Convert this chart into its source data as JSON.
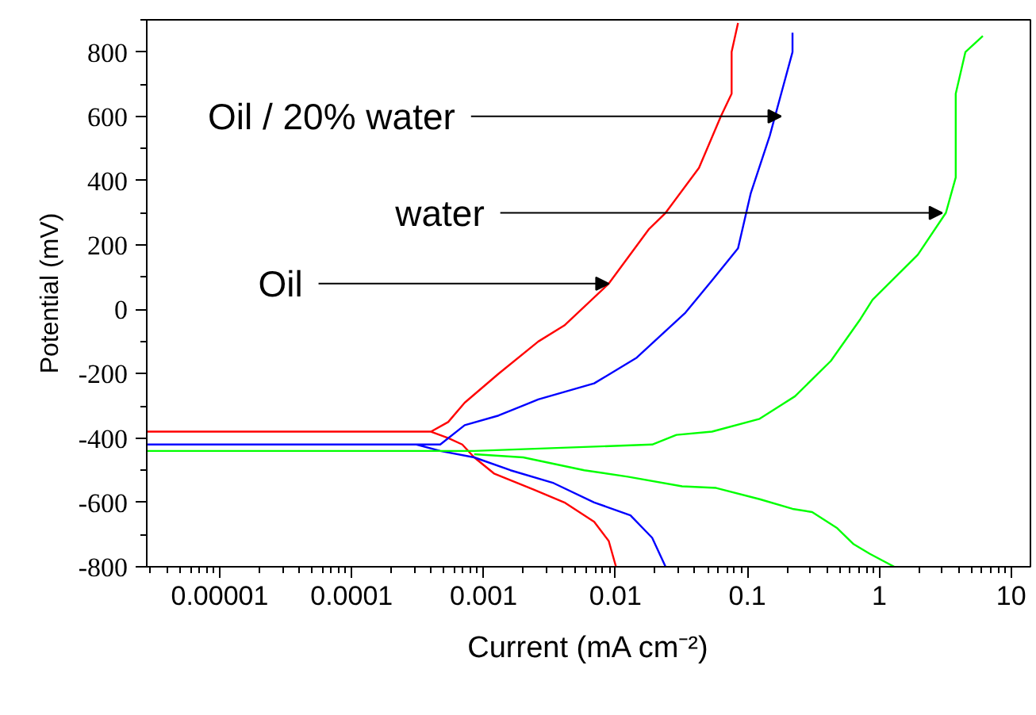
{
  "chart_data": {
    "type": "line",
    "xlabel": "Current (mA cm⁻²)",
    "ylabel": "Potential (mV)",
    "log": "x",
    "xlim": [
      2.8e-06,
      14
    ],
    "ylim": [
      -800,
      900
    ],
    "xticks": [
      {
        "value": 1e-05,
        "label": "0.00001"
      },
      {
        "value": 0.0001,
        "label": "0.0001"
      },
      {
        "value": 0.001,
        "label": "0.001"
      },
      {
        "value": 0.01,
        "label": "0.01"
      },
      {
        "value": 0.1,
        "label": "0.1"
      },
      {
        "value": 1,
        "label": "1"
      },
      {
        "value": 10,
        "label": "10"
      }
    ],
    "yticks": [
      -800,
      -600,
      -400,
      -200,
      0,
      200,
      400,
      600,
      800
    ],
    "annotations": [
      {
        "text": "Oil / 20% water",
        "x": 0.18,
        "y": 600
      },
      {
        "text": "water",
        "x": 3.0,
        "y": 300
      },
      {
        "text": "Oil",
        "x": 0.0089,
        "y": 80
      }
    ],
    "series": [
      {
        "color": "#ff0000",
        "x": [
          2.8e-06,
          0.0004,
          0.00054,
          0.00072,
          0.0013,
          0.0026,
          0.0041,
          0.0089,
          0.018,
          0.024,
          0.043,
          0.063,
          0.076,
          0.076,
          0.085,
          null,
          0.0004,
          0.00054,
          0.00069,
          0.00085,
          0.0012,
          0.0024,
          0.0041,
          0.0069,
          0.0089,
          0.0101
        ],
        "values": [
          -380,
          -380,
          -350,
          -290,
          -200,
          -100,
          -50,
          80,
          250,
          300,
          440,
          600,
          670,
          800,
          890,
          null,
          -380,
          -400,
          -420,
          -460,
          -510,
          -560,
          -600,
          -660,
          -720,
          -800
        ]
      },
      {
        "color": "#0000ff",
        "x": [
          2.8e-06,
          0.00047,
          0.00072,
          0.0013,
          0.0026,
          0.0069,
          0.0145,
          0.034,
          0.054,
          0.085,
          0.106,
          0.148,
          0.186,
          0.22,
          0.22,
          null,
          0.00031,
          0.00047,
          0.00085,
          0.0016,
          0.0034,
          0.0069,
          0.013,
          0.019,
          0.024
        ],
        "values": [
          -420,
          -420,
          -360,
          -330,
          -280,
          -230,
          -150,
          -10,
          90,
          190,
          360,
          540,
          690,
          800,
          860,
          null,
          -420,
          -440,
          -460,
          -500,
          -540,
          -600,
          -640,
          -710,
          -800
        ]
      },
      {
        "color": "#00ff00",
        "x": [
          2.8e-06,
          0.00085,
          0.019,
          0.029,
          0.054,
          0.124,
          0.23,
          0.43,
          0.72,
          0.89,
          1.96,
          3.2,
          3.8,
          3.8,
          4.5,
          6.1,
          null,
          0.00085,
          0.002,
          0.0058,
          0.0124,
          0.032,
          0.058,
          0.124,
          0.22,
          0.31,
          0.48,
          0.64,
          0.85,
          1.3
        ],
        "values": [
          -440,
          -440,
          -420,
          -390,
          -380,
          -340,
          -270,
          -160,
          -30,
          30,
          170,
          300,
          410,
          670,
          800,
          850,
          null,
          -450,
          -460,
          -500,
          -520,
          -550,
          -555,
          -590,
          -620,
          -630,
          -680,
          -730,
          -760,
          -800
        ]
      }
    ]
  }
}
